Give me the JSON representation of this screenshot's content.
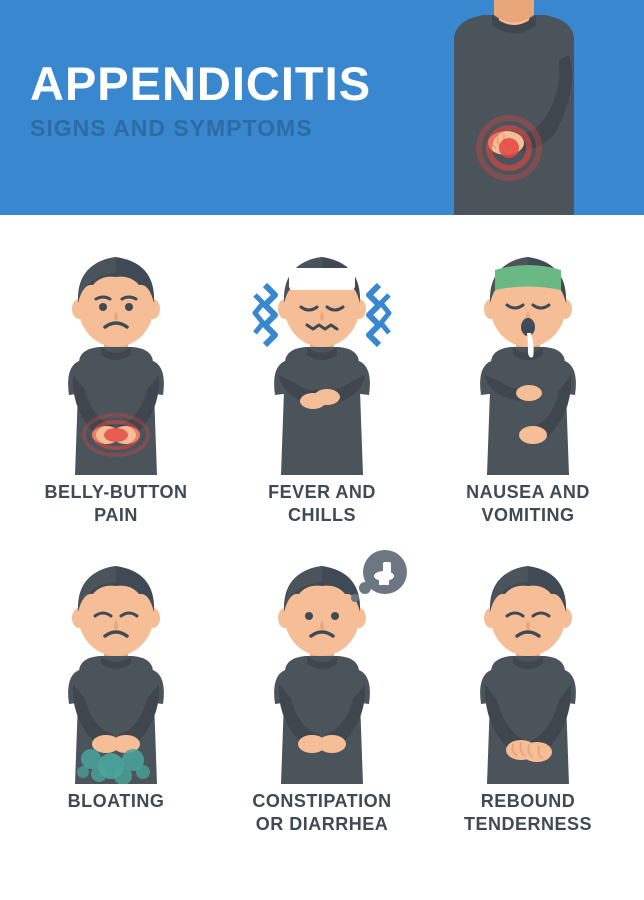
{
  "header": {
    "title": "APPENDICITIS",
    "subtitle": "SIGNS AND SYMPTOMS",
    "bg_color": "#3988cf",
    "title_color": "#ffffff",
    "subtitle_color": "#2d6ba3"
  },
  "palette": {
    "skin": "#f5be97",
    "skin_shadow": "#e8a679",
    "hair": "#3f4a54",
    "shirt": "#4b535b",
    "shirt_dark": "#3f464d",
    "label_color": "#3f4a54",
    "pain_red": "#e3453f",
    "pain_red_light": "#ef7b6f",
    "chill_blue": "#3988cf",
    "nausea_green": "#6ab884",
    "bloat_teal": "#4aa59e",
    "bubble_gray": "#6d7781",
    "white": "#ffffff"
  },
  "symptoms": [
    {
      "key": "belly-button-pain",
      "label": "BELLY-BUTTON\nPAIN"
    },
    {
      "key": "fever-and-chills",
      "label": "FEVER AND\nCHILLS"
    },
    {
      "key": "nausea-and-vomiting",
      "label": "NAUSEA AND\nVOMITING"
    },
    {
      "key": "bloating",
      "label": "BLOATING"
    },
    {
      "key": "constipation-or-diarrhea",
      "label": "CONSTIPATION\nOR DIARRHEA"
    },
    {
      "key": "rebound-tenderness",
      "label": "REBOUND\nTENDERNESS"
    }
  ]
}
